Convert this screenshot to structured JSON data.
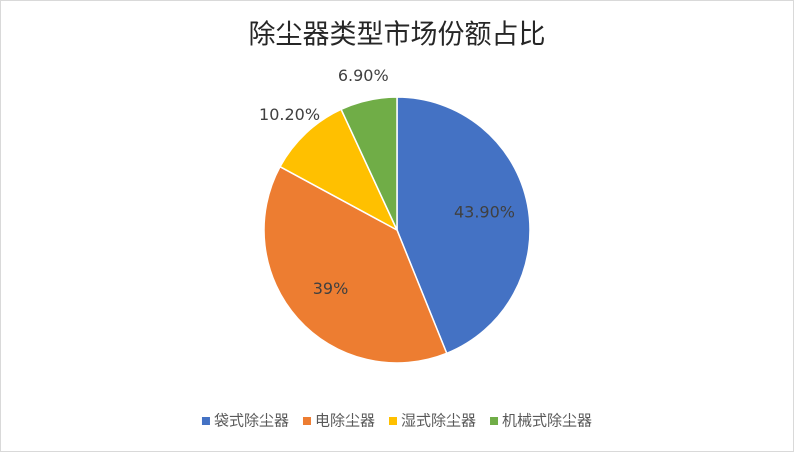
{
  "chart_data": {
    "type": "pie",
    "title": "除尘器类型市场份额占比",
    "categories": [
      "袋式除尘器",
      "电除尘器",
      "湿式除尘器",
      "机械式除尘器"
    ],
    "values": [
      43.9,
      39,
      10.2,
      6.9
    ],
    "value_labels": [
      "43.90%",
      "39%",
      "10.20%",
      "6.90%"
    ],
    "colors": [
      "#4472c4",
      "#ed7d31",
      "#ffc000",
      "#70ad47"
    ],
    "legend": "bottom"
  }
}
